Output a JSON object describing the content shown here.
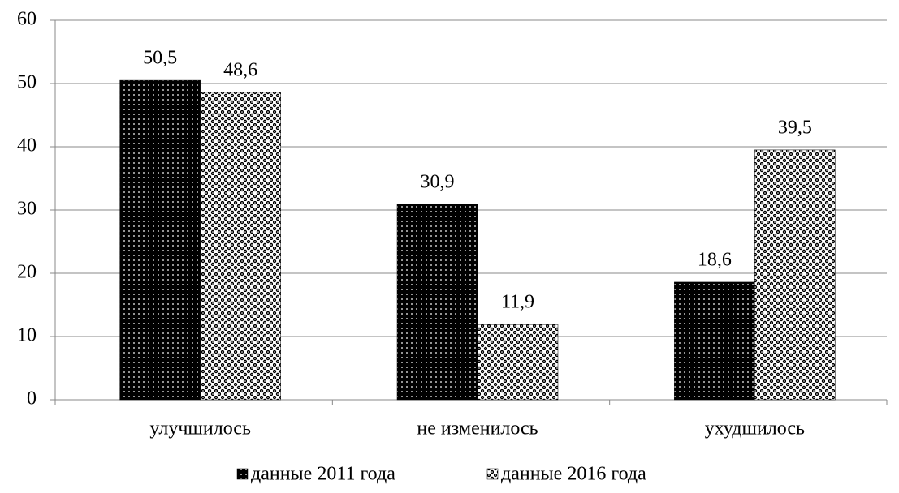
{
  "chart_data": {
    "type": "bar",
    "categories": [
      "улучшилось",
      "не изменилось",
      "ухудшилось"
    ],
    "series": [
      {
        "name": "данные 2011 года",
        "color": "#000000",
        "values": [
          50.5,
          30.9,
          18.6
        ],
        "value_labels": [
          "50,5",
          "30,9",
          "18,6"
        ]
      },
      {
        "name": "данные 2016 года",
        "color": "#000000",
        "values": [
          48.6,
          11.9,
          39.5
        ],
        "value_labels": [
          "48,6",
          "11,9",
          "39,5"
        ]
      }
    ],
    "ylim": [
      0,
      60
    ],
    "yticks": [
      0,
      10,
      20,
      30,
      40,
      50,
      60
    ],
    "grid": true,
    "legend": "bottom"
  }
}
